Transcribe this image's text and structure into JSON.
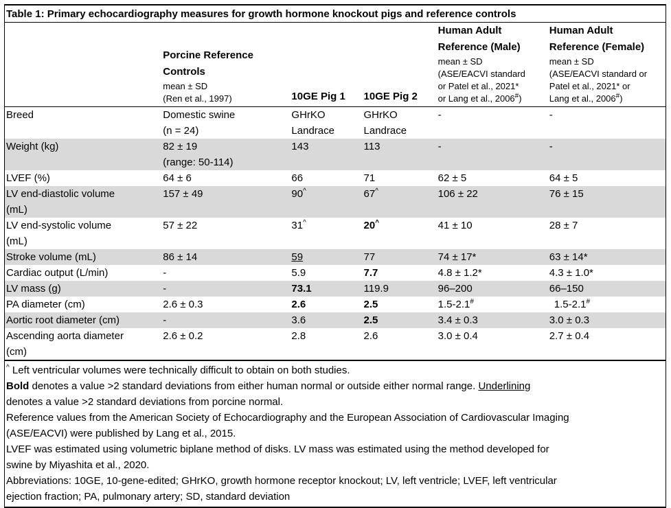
{
  "colors": {
    "row_shading": "#d9d9d9",
    "border": "#000000",
    "text": "#000000",
    "background": "#ffffff"
  },
  "title": "Table 1: Primary echocardiography measures for growth hormone knockout pigs and reference controls",
  "header": {
    "cells": [
      {
        "bold_lines": [],
        "small_lines": []
      },
      {
        "bold_lines": [
          "Porcine Reference",
          "Controls"
        ],
        "small_lines": [
          "mean ± SD",
          "(Ren et al., 1997)"
        ]
      },
      {
        "bold_lines": [
          "10GE Pig 1"
        ],
        "small_lines": []
      },
      {
        "bold_lines": [
          "10GE Pig 2"
        ],
        "small_lines": []
      },
      {
        "bold_lines": [
          "Human Adult",
          "Reference (Male)"
        ],
        "small_lines": [
          "mean ± SD",
          "(ASE/EACVI standard",
          "or Patel et al., 2021*",
          {
            "text": "or Lang et al., 2006",
            "sup": "#",
            "after": ")"
          }
        ]
      },
      {
        "bold_lines": [
          "Human Adult",
          "Reference (Female)"
        ],
        "small_lines": [
          "mean ± SD",
          "(ASE/EACVI standard or",
          "Patel et al., 2021* or",
          {
            "text": "Lang et al., 2006",
            "sup": "#",
            "after": ")"
          }
        ]
      }
    ]
  },
  "table": {
    "rows": [
      {
        "shaded": false,
        "cells": [
          {
            "lines": [
              "Breed"
            ]
          },
          {
            "lines": [
              "Domestic swine",
              "(n = 24)"
            ]
          },
          {
            "lines": [
              "GHrKO",
              "Landrace"
            ]
          },
          {
            "lines": [
              "GHrKO",
              "Landrace"
            ]
          },
          "-",
          "-"
        ]
      },
      {
        "shaded": true,
        "cells": [
          {
            "lines": [
              "Weight (kg)"
            ]
          },
          {
            "lines": [
              "82 ± 19",
              "(range: 50-114)"
            ]
          },
          "143",
          "113",
          "-",
          "-"
        ]
      },
      {
        "shaded": false,
        "cells": [
          {
            "lines": [
              "LVEF (%)"
            ]
          },
          "64 ± 6",
          "66",
          "71",
          "62 ± 5",
          "64 ± 5"
        ]
      },
      {
        "shaded": true,
        "cells": [
          {
            "lines": [
              "LV end-diastolic volume",
              "(mL)"
            ]
          },
          "157 ± 49",
          {
            "text": "90",
            "sup": "^"
          },
          {
            "text": "67",
            "sup": "^"
          },
          "106 ± 22",
          "76 ± 15"
        ]
      },
      {
        "shaded": false,
        "cells": [
          {
            "lines": [
              "LV end-systolic volume",
              "(mL)"
            ]
          },
          "57 ± 22",
          {
            "text": "31",
            "sup": "^"
          },
          {
            "text": "20",
            "sup": "^",
            "bold": true
          },
          "41 ± 10",
          "28 ± 7"
        ]
      },
      {
        "shaded": true,
        "cells": [
          {
            "lines": [
              "Stroke volume (mL)"
            ]
          },
          "86 ± 14",
          {
            "text": "59",
            "underline": true
          },
          "77",
          "74 ± 17*",
          "63 ± 14*"
        ]
      },
      {
        "shaded": false,
        "cells": [
          {
            "lines": [
              "Cardiac output (L/min)"
            ]
          },
          "-",
          "5.9",
          {
            "text": "7.7",
            "bold": true
          },
          "4.8 ± 1.2*",
          "4.3 ± 1.0*"
        ]
      },
      {
        "shaded": true,
        "cells": [
          {
            "lines": [
              "LV mass (g)"
            ]
          },
          "-",
          {
            "text": "73.1",
            "bold": true
          },
          "119.9",
          "96–200",
          "66–150"
        ]
      },
      {
        "shaded": false,
        "cells": [
          {
            "lines": [
              "PA diameter (cm)"
            ]
          },
          "2.6 ± 0.3",
          {
            "text": "2.6",
            "bold": true
          },
          {
            "text": "2.5",
            "bold": true
          },
          {
            "text": "1.5-2.1",
            "sup": "#"
          },
          {
            "text": "1.5-2.1",
            "sup": "#",
            "indent": true
          }
        ]
      },
      {
        "shaded": true,
        "cells": [
          {
            "lines": [
              "Aortic root diameter (cm)"
            ]
          },
          "-",
          "3.6",
          {
            "text": "2.5",
            "bold": true
          },
          "3.4 ± 0.3",
          "3.0 ± 0.3"
        ]
      },
      {
        "shaded": false,
        "cells": [
          {
            "lines": [
              "Ascending aorta diameter",
              "(cm)"
            ]
          },
          "2.6 ± 0.2",
          "2.8",
          "2.6",
          "3.0 ± 0.4",
          "2.7 ± 0.4"
        ]
      }
    ]
  },
  "footnotes": [
    {
      "lines": [
        [
          {
            "sup": "^"
          },
          {
            "text": " Left ventricular volumes were technically difficult to obtain on both studies."
          }
        ]
      ]
    },
    {
      "lines": [
        [
          {
            "text": "Bold",
            "bold": true
          },
          {
            "text": " denotes a value >2 standard deviations from either human normal or outside either normal range. "
          },
          {
            "text": "Underlining",
            "underline": true
          }
        ],
        [
          {
            "text": "denotes a value >2 standard deviations from porcine normal."
          }
        ]
      ]
    },
    {
      "lines": [
        [
          {
            "text": "Reference values from the American Society of Echocardiography and the European Association of Cardiovascular Imaging"
          }
        ],
        [
          {
            "text": "(ASE/EACVI) were published by Lang et al., 2015."
          }
        ]
      ]
    },
    {
      "lines": [
        [
          {
            "text": "LVEF was estimated using volumetric biplane method of disks. LV mass was estimated using the method developed for"
          }
        ],
        [
          {
            "text": "swine by Miyashita et al., 2020."
          }
        ]
      ]
    },
    {
      "lines": [
        [
          {
            "text": "Abbreviations: 10GE, 10-gene-edited; GHrKO, growth hormone receptor knockout; LV, left ventricle; LVEF, left ventricular"
          }
        ],
        [
          {
            "text": "ejection fraction; PA, pulmonary artery; SD, standard deviation"
          }
        ]
      ]
    }
  ]
}
